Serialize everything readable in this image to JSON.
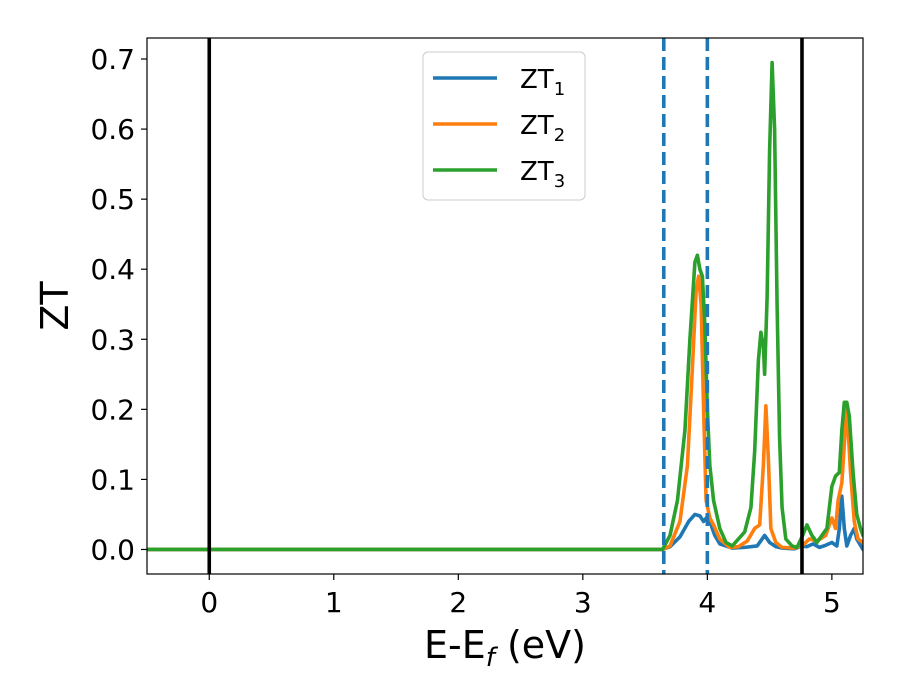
{
  "chart_data": {
    "type": "line",
    "title": "",
    "xlabel": {
      "base": "E-E",
      "sub": "f",
      "suffix": " (eV)"
    },
    "ylabel": "ZT",
    "xlim": [
      -0.5,
      5.25
    ],
    "ylim": [
      -0.035,
      0.73
    ],
    "xticks": [
      0,
      1,
      2,
      3,
      4,
      5
    ],
    "yticks": [
      0.0,
      0.1,
      0.2,
      0.3,
      0.4,
      0.5,
      0.6,
      0.7
    ],
    "xtick_labels": [
      "0",
      "1",
      "2",
      "3",
      "4",
      "5"
    ],
    "ytick_labels": [
      "0.0",
      "0.1",
      "0.2",
      "0.3",
      "0.4",
      "0.5",
      "0.6",
      "0.7"
    ],
    "grid": false,
    "legend_position": "top-center",
    "vertical_lines": [
      {
        "x": 0.0,
        "style": "solid",
        "color": "#000000"
      },
      {
        "x": 4.76,
        "style": "solid",
        "color": "#000000"
      },
      {
        "x": 3.65,
        "style": "dashed",
        "color": "#1f77b4"
      },
      {
        "x": 4.0,
        "style": "dashed",
        "color": "#1f77b4"
      }
    ],
    "series": [
      {
        "name": "ZT",
        "sub": "1",
        "color": "#1f77b4",
        "x": [
          -0.5,
          3.64,
          3.7,
          3.78,
          3.85,
          3.9,
          3.94,
          3.97,
          4.0,
          4.03,
          4.06,
          4.1,
          4.2,
          4.3,
          4.4,
          4.46,
          4.5,
          4.55,
          4.6,
          4.7,
          4.76,
          4.8,
          4.85,
          4.9,
          4.95,
          5.0,
          5.04,
          5.06,
          5.08,
          5.1,
          5.12,
          5.15,
          5.18,
          5.2,
          5.25
        ],
        "y": [
          0.0,
          0.0,
          0.004,
          0.018,
          0.04,
          0.05,
          0.048,
          0.04,
          0.047,
          0.035,
          0.02,
          0.008,
          0.002,
          0.003,
          0.005,
          0.02,
          0.01,
          0.004,
          0.002,
          0.001,
          0.005,
          0.004,
          0.008,
          0.003,
          0.006,
          0.01,
          0.005,
          0.03,
          0.076,
          0.03,
          0.005,
          0.02,
          0.03,
          0.015,
          0.0
        ]
      },
      {
        "name": "ZT",
        "sub": "2",
        "color": "#ff7f0e",
        "x": [
          -0.5,
          3.64,
          3.7,
          3.78,
          3.84,
          3.88,
          3.91,
          3.93,
          3.95,
          3.97,
          3.99,
          4.02,
          4.05,
          4.1,
          4.18,
          4.25,
          4.32,
          4.38,
          4.42,
          4.45,
          4.47,
          4.49,
          4.51,
          4.55,
          4.6,
          4.7,
          4.76,
          4.82,
          4.88,
          4.95,
          5.0,
          5.03,
          5.05,
          5.08,
          5.1,
          5.12,
          5.15,
          5.18,
          5.21,
          5.25
        ],
        "y": [
          0.0,
          0.0,
          0.005,
          0.04,
          0.12,
          0.26,
          0.37,
          0.39,
          0.35,
          0.2,
          0.07,
          0.045,
          0.035,
          0.015,
          0.003,
          0.004,
          0.012,
          0.03,
          0.035,
          0.12,
          0.205,
          0.13,
          0.03,
          0.01,
          0.003,
          0.002,
          0.005,
          0.015,
          0.012,
          0.02,
          0.045,
          0.03,
          0.07,
          0.095,
          0.15,
          0.205,
          0.11,
          0.04,
          0.015,
          0.01
        ]
      },
      {
        "name": "ZT",
        "sub": "3",
        "color": "#2ca02c",
        "x": [
          -0.5,
          3.64,
          3.7,
          3.76,
          3.82,
          3.86,
          3.9,
          3.92,
          3.94,
          3.96,
          3.98,
          4.0,
          4.02,
          4.05,
          4.1,
          4.15,
          4.2,
          4.25,
          4.3,
          4.35,
          4.38,
          4.41,
          4.43,
          4.45,
          4.46,
          4.48,
          4.5,
          4.52,
          4.54,
          4.56,
          4.58,
          4.6,
          4.63,
          4.68,
          4.72,
          4.76,
          4.8,
          4.84,
          4.88,
          4.92,
          4.96,
          5.0,
          5.03,
          5.06,
          5.08,
          5.1,
          5.12,
          5.14,
          5.17,
          5.2,
          5.23,
          5.25
        ],
        "y": [
          0.0,
          0.0,
          0.02,
          0.07,
          0.17,
          0.3,
          0.41,
          0.42,
          0.4,
          0.39,
          0.32,
          0.2,
          0.12,
          0.07,
          0.03,
          0.01,
          0.005,
          0.015,
          0.025,
          0.06,
          0.14,
          0.27,
          0.31,
          0.29,
          0.25,
          0.36,
          0.57,
          0.695,
          0.6,
          0.35,
          0.16,
          0.06,
          0.015,
          0.005,
          0.003,
          0.018,
          0.035,
          0.02,
          0.01,
          0.02,
          0.03,
          0.09,
          0.105,
          0.11,
          0.17,
          0.21,
          0.21,
          0.19,
          0.11,
          0.05,
          0.03,
          0.02
        ]
      }
    ]
  }
}
